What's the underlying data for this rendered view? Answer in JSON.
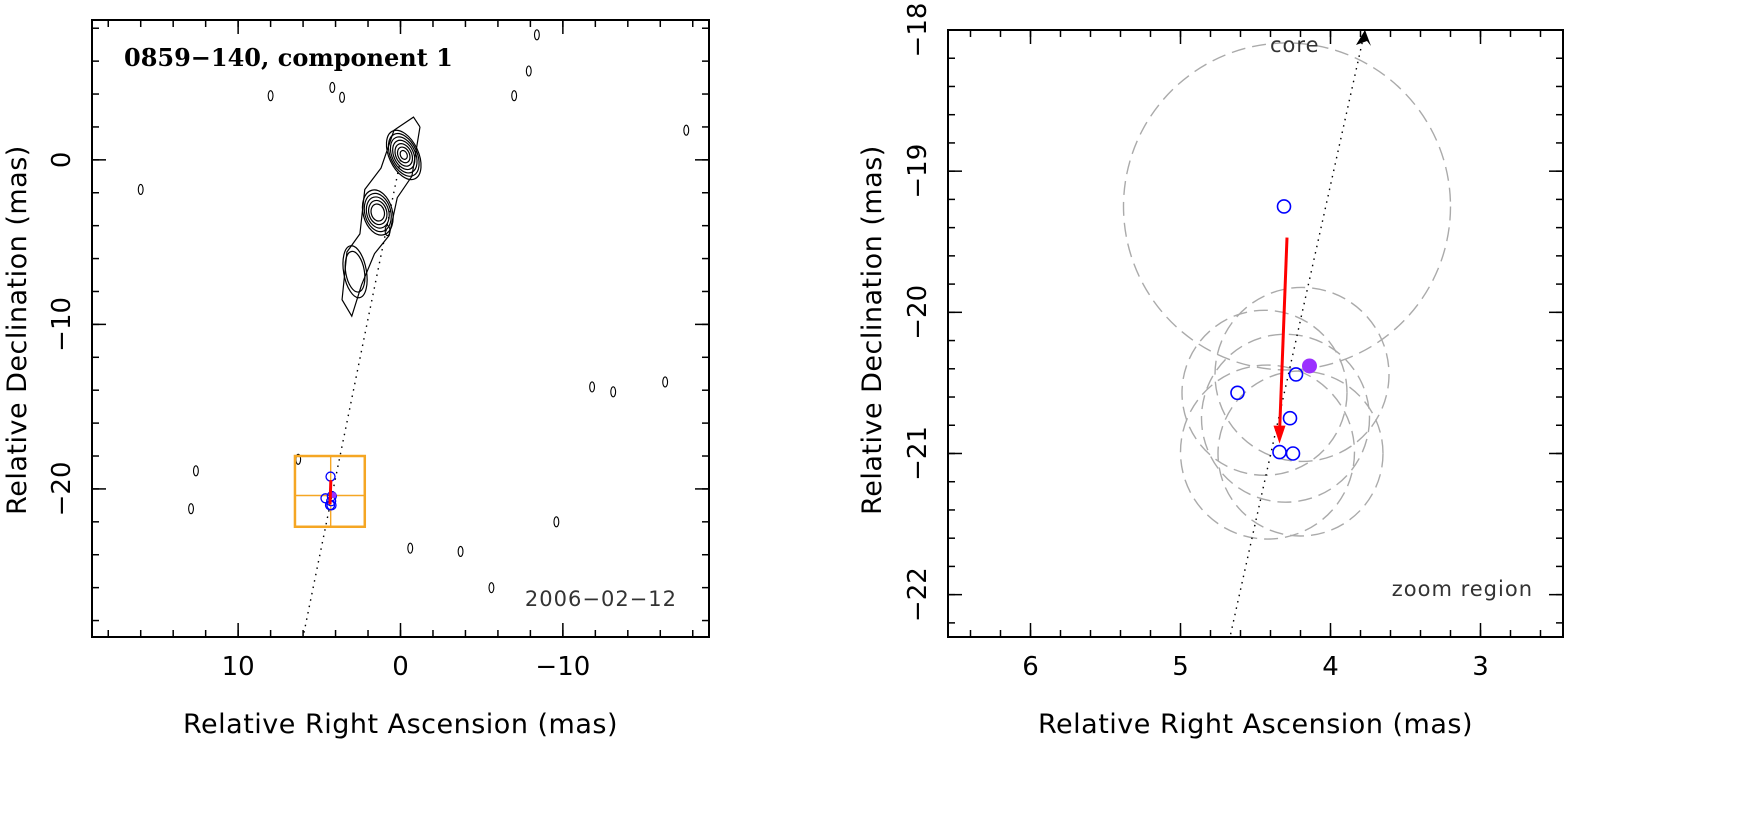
{
  "chart_data": [
    {
      "type": "scatter",
      "panel": "left",
      "title": "0859−140, component 1",
      "epoch_label": "2006−02−12",
      "xlabel": "Relative Right Ascension (mas)",
      "ylabel": "Relative Declination (mas)",
      "xlim": [
        19.0,
        -19.0
      ],
      "ylim": [
        -29.0,
        8.5
      ],
      "x_ticks": [
        10,
        0,
        -10
      ],
      "x_tick_labels": [
        "10",
        "0",
        "−10"
      ],
      "y_ticks": [
        0,
        -10,
        -20
      ],
      "y_tick_labels": [
        "0",
        "−10",
        "−20"
      ],
      "contours": "black radio-intensity contours of jet extending from core (0,0) toward the south-east",
      "zoom_box": {
        "x": [
          6.5,
          2.2
        ],
        "y": [
          -18.0,
          -22.3
        ],
        "color": "#f5a623"
      },
      "jet_direction_line": {
        "from": [
          0,
          0
        ],
        "to": [
          6.0,
          -29.0
        ],
        "style": "dotted"
      },
      "colors": {
        "contours": "#000000",
        "zoom_box": "#f5a623",
        "vector": "#ff0000",
        "points": "#0000ff"
      }
    },
    {
      "type": "scatter",
      "panel": "right",
      "core_label": "core",
      "region_label": "zoom region",
      "xlabel": "Relative Right Ascension (mas)",
      "ylabel": "Relative Declination (mas)",
      "xlim": [
        6.55,
        2.45
      ],
      "ylim": [
        -22.3,
        -18.0
      ],
      "x_ticks": [
        6,
        5,
        4,
        3
      ],
      "x_tick_labels": [
        "6",
        "5",
        "4",
        "3"
      ],
      "y_ticks": [
        -18,
        -19,
        -20,
        -21,
        -22
      ],
      "y_tick_labels": [
        "−18",
        "−19",
        "−20",
        "−21",
        "−22"
      ],
      "open_points": [
        {
          "x": 4.31,
          "y": -19.25
        },
        {
          "x": 4.23,
          "y": -20.44
        },
        {
          "x": 4.62,
          "y": -20.57
        },
        {
          "x": 4.27,
          "y": -20.75
        },
        {
          "x": 4.34,
          "y": -20.99
        },
        {
          "x": 4.25,
          "y": -21.0
        }
      ],
      "filled_point": {
        "x": 4.14,
        "y": -20.38
      },
      "motion_vector": {
        "from": [
          4.29,
          -19.47
        ],
        "to": [
          4.34,
          -20.93
        ]
      },
      "jet_direction_line": {
        "from": [
          3.77,
          -18.0
        ],
        "to": [
          4.67,
          -22.3
        ]
      },
      "uncertainty_circles": [
        {
          "cx": 4.29,
          "cy": -19.25,
          "r": 1.09
        },
        {
          "cx": 4.19,
          "cy": -20.44,
          "r": 0.58
        },
        {
          "cx": 4.44,
          "cy": -20.57,
          "r": 0.55
        },
        {
          "cx": 4.3,
          "cy": -20.75,
          "r": 0.56
        },
        {
          "cx": 4.42,
          "cy": -20.99,
          "r": 0.58
        },
        {
          "cx": 4.2,
          "cy": -21.0,
          "r": 0.55
        }
      ],
      "colors": {
        "circles": "#aaaaaa",
        "vector": "#ff0000",
        "points": "#0000ff",
        "filled_point": "#9b30ff"
      }
    }
  ]
}
